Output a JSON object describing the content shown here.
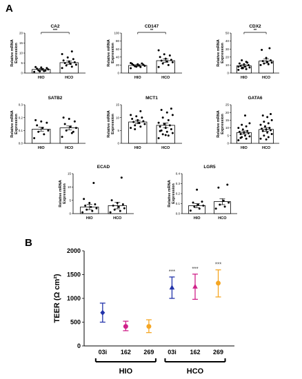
{
  "figure": {
    "panel_a_label": "A",
    "panel_b_label": "B"
  },
  "chart_data": [
    {
      "type": "bar",
      "title": "CA2",
      "ylabel": "Relative mRNA Expression",
      "categories": [
        "HIO",
        "HCO"
      ],
      "ylim": [
        0,
        20
      ],
      "yticks": [
        0,
        5,
        10,
        15,
        20
      ],
      "values": [
        1.8,
        5.2
      ],
      "errors": [
        0.4,
        0.8
      ],
      "significance": "***",
      "points": [
        [
          0.6,
          1.0,
          1.4,
          1.8,
          2.0,
          2.2,
          2.5,
          2.8,
          3.0,
          1.2,
          0.8
        ],
        [
          2.5,
          3.2,
          3.8,
          4.2,
          4.6,
          5.0,
          5.4,
          5.8,
          6.3,
          7.0,
          7.8,
          9.5,
          10.8
        ]
      ]
    },
    {
      "type": "bar",
      "title": "CD147",
      "ylabel": "Relative mRNA Expression",
      "categories": [
        "HIO",
        "HCO"
      ],
      "ylim": [
        0,
        100
      ],
      "yticks": [
        0,
        20,
        40,
        60,
        80,
        100
      ],
      "values": [
        19,
        31
      ],
      "errors": [
        2,
        4
      ],
      "significance": "**",
      "points": [
        [
          12,
          15,
          17,
          18,
          19,
          20,
          21,
          22,
          23,
          24,
          16,
          25
        ],
        [
          15,
          20,
          24,
          27,
          29,
          31,
          33,
          36,
          40,
          44,
          47,
          57
        ]
      ]
    },
    {
      "type": "bar",
      "title": "CDX2",
      "ylabel": "Relative mRNA Expression",
      "categories": [
        "HIO",
        "HCO"
      ],
      "ylim": [
        0,
        50
      ],
      "yticks": [
        0,
        10,
        20,
        30,
        40,
        50
      ],
      "values": [
        9,
        15
      ],
      "errors": [
        1.5,
        2.5
      ],
      "significance": "**",
      "points": [
        [
          4,
          5,
          6,
          7,
          8,
          9,
          10,
          11,
          12,
          13,
          6,
          8,
          14,
          16
        ],
        [
          10,
          11,
          12,
          13,
          14,
          15,
          16,
          19,
          29,
          31
        ]
      ]
    },
    {
      "type": "bar",
      "title": "SATB2",
      "ylabel": "Relative mRNA Expression",
      "categories": [
        "HIO",
        "HCO"
      ],
      "ylim": [
        0,
        0.3
      ],
      "yticks": [
        0.0,
        0.1,
        0.2,
        0.3
      ],
      "values": [
        0.11,
        0.12
      ],
      "errors": [
        0.015,
        0.015
      ],
      "significance": "",
      "points": [
        [
          0.04,
          0.07,
          0.09,
          0.1,
          0.12,
          0.14,
          0.16,
          0.17,
          0.18
        ],
        [
          0.05,
          0.08,
          0.1,
          0.12,
          0.13,
          0.15,
          0.17,
          0.19,
          0.2,
          0.09
        ]
      ]
    },
    {
      "type": "bar",
      "title": "MCT1",
      "ylabel": "Relative mRNA Expression",
      "categories": [
        "HIO",
        "HCO"
      ],
      "ylim": [
        0,
        15
      ],
      "yticks": [
        0,
        5,
        10,
        15
      ],
      "values": [
        8.3,
        7.0
      ],
      "errors": [
        0.7,
        0.9
      ],
      "significance": "",
      "points": [
        [
          6,
          6.5,
          7,
          7.5,
          8,
          8.3,
          8.6,
          9,
          9.5,
          10,
          10.5,
          11,
          12.5,
          5.5
        ],
        [
          2,
          3,
          3.5,
          4,
          4.5,
          5,
          5.5,
          6,
          6.5,
          7,
          7.5,
          8,
          9,
          10,
          11,
          12,
          13,
          13.5,
          3.2,
          4.8
        ]
      ]
    },
    {
      "type": "bar",
      "title": "GATA6",
      "ylabel": "Relative mRNA Expression",
      "categories": [
        "HIO",
        "HCO"
      ],
      "ylim": [
        0,
        25
      ],
      "yticks": [
        0,
        5,
        10,
        15,
        20,
        25
      ],
      "values": [
        7.0,
        9.0
      ],
      "errors": [
        1.0,
        1.2
      ],
      "significance": "",
      "points": [
        [
          2,
          3,
          4,
          4.5,
          5,
          6,
          6.5,
          7,
          7.5,
          8,
          9,
          10,
          11,
          12,
          13,
          18,
          3.5
        ],
        [
          3,
          4,
          5,
          6,
          7,
          8,
          8.5,
          9,
          9.5,
          10,
          11,
          12,
          13,
          14,
          15,
          17,
          18,
          19,
          2.5
        ]
      ]
    },
    {
      "type": "bar",
      "title": "ECAD",
      "ylabel": "Relative mRNA Expression",
      "categories": [
        "HIO",
        "HCO"
      ],
      "ylim": [
        0,
        15
      ],
      "yticks": [
        0,
        5,
        10,
        15
      ],
      "values": [
        2.5,
        3.0
      ],
      "errors": [
        1.0,
        1.2
      ],
      "significance": "",
      "points": [
        [
          0.5,
          1,
          1.5,
          2,
          2.5,
          3,
          3.5,
          4,
          5.5,
          11.5
        ],
        [
          0.5,
          1,
          1.5,
          2,
          2.5,
          3,
          3.5,
          4,
          5,
          13.5
        ]
      ]
    },
    {
      "type": "bar",
      "title": "LGR5",
      "ylabel": "Relative mRNA Expression",
      "categories": [
        "HIO",
        "HCO"
      ],
      "ylim": [
        0,
        0.4
      ],
      "yticks": [
        0.0,
        0.1,
        0.2,
        0.3,
        0.4
      ],
      "values": [
        0.08,
        0.12
      ],
      "errors": [
        0.02,
        0.03
      ],
      "significance": "",
      "points": [
        [
          0.03,
          0.05,
          0.07,
          0.08,
          0.09,
          0.11,
          0.12,
          0.24
        ],
        [
          0.05,
          0.07,
          0.09,
          0.11,
          0.13,
          0.26,
          0.29
        ]
      ]
    },
    {
      "type": "scatter",
      "title": "",
      "ylabel": "TEER (Ω cm²)",
      "ylim": [
        0,
        2000
      ],
      "yticks": [
        0,
        500,
        1000,
        1500,
        2000
      ],
      "categories": [
        "03i",
        "162",
        "269",
        "03i",
        "162",
        "269"
      ],
      "groups": [
        {
          "label": "HIO",
          "span": [
            0,
            2
          ]
        },
        {
          "label": "HCO",
          "span": [
            3,
            5
          ]
        }
      ],
      "series": [
        {
          "x": "03i",
          "group": "HIO",
          "value": 700,
          "low": 500,
          "high": 900,
          "color": "#2233aa",
          "marker": "diamond",
          "significance": ""
        },
        {
          "x": "162",
          "group": "HIO",
          "value": 410,
          "low": 320,
          "high": 520,
          "color": "#d0218a",
          "marker": "circle",
          "significance": ""
        },
        {
          "x": "269",
          "group": "HIO",
          "value": 410,
          "low": 280,
          "high": 550,
          "color": "#f5a623",
          "marker": "circle",
          "significance": ""
        },
        {
          "x": "03i",
          "group": "HCO",
          "value": 1230,
          "low": 1000,
          "high": 1450,
          "color": "#2233aa",
          "marker": "triangle",
          "significance": "***"
        },
        {
          "x": "162",
          "group": "HCO",
          "value": 1250,
          "low": 980,
          "high": 1510,
          "color": "#d0218a",
          "marker": "triangle",
          "significance": "***"
        },
        {
          "x": "269",
          "group": "HCO",
          "value": 1320,
          "low": 1030,
          "high": 1600,
          "color": "#f5a623",
          "marker": "circle",
          "significance": "***"
        }
      ]
    }
  ]
}
